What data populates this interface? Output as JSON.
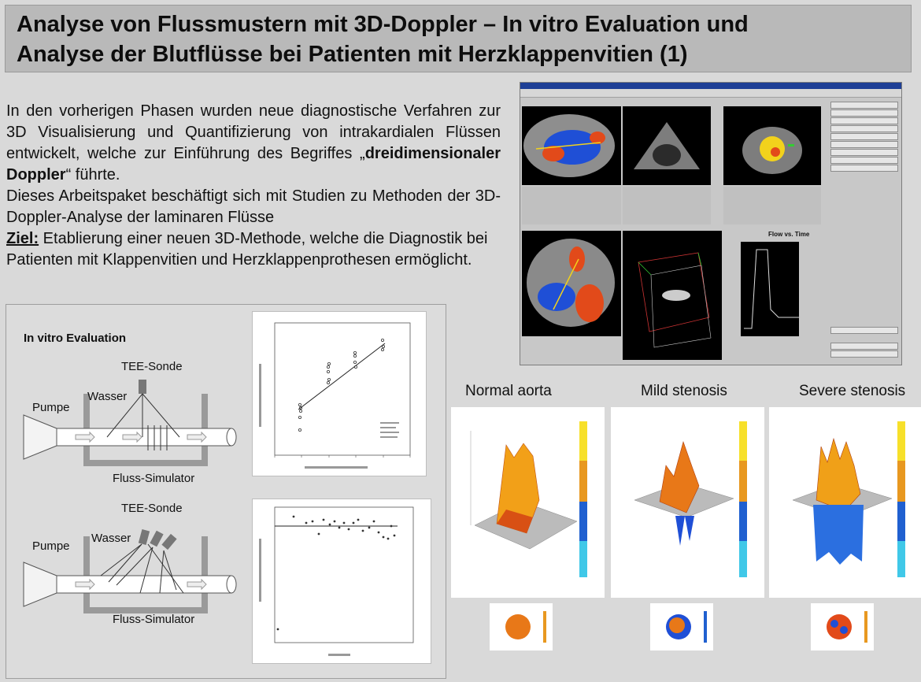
{
  "title": {
    "line1": "Analyse von Flussmustern mit 3D-Doppler – In vitro Evaluation und",
    "line2": "Analyse der Blutflüsse bei Patienten mit Herzklappenvitien (1)"
  },
  "intro": {
    "p1_before": "In den vorherigen Phasen wurden neue diagnostische Verfahren zur 3D Visualisierung und Quantifizierung von intrakardialen Flüssen entwickelt, welche zur Einführung des Begriffes „",
    "p1_bold": "dreidimensionaler Doppler",
    "p1_after": "“ führte.",
    "p2": "Dieses Arbeitspaket beschäftigt sich mit Studien zu Methoden der 3D-Doppler-Analyse der laminaren Flüsse",
    "ziel_label": "Ziel:",
    "ziel_text": " Etablierung einer neuen 3D-Methode, welche die Diagnostik bei Patienten mit Klappenvitien und Herzklappenprothesen ermöglicht."
  },
  "vitro": {
    "heading": "In vitro Evaluation",
    "setup1": {
      "probe": "TEE-Sonde",
      "water": "Wasser",
      "pump": "Pumpe",
      "simulator": "Fluss-Simulator"
    },
    "setup2": {
      "probe": "TEE-Sonde",
      "water": "Wasser",
      "pump": "Pumpe",
      "simulator": "Fluss-Simulator"
    }
  },
  "app": {
    "flow_title": "Flow vs. Time"
  },
  "stenosis": {
    "labels": [
      "Normal aorta",
      "Mild stenosis",
      "Severe stenosis"
    ]
  },
  "colors": {
    "title_bg": "#b9b9b9",
    "page_bg": "#d9d9d9",
    "flow_red": "#e24a1a",
    "flow_blue": "#1f4fd6",
    "flow_yellow": "#f2d21c"
  }
}
